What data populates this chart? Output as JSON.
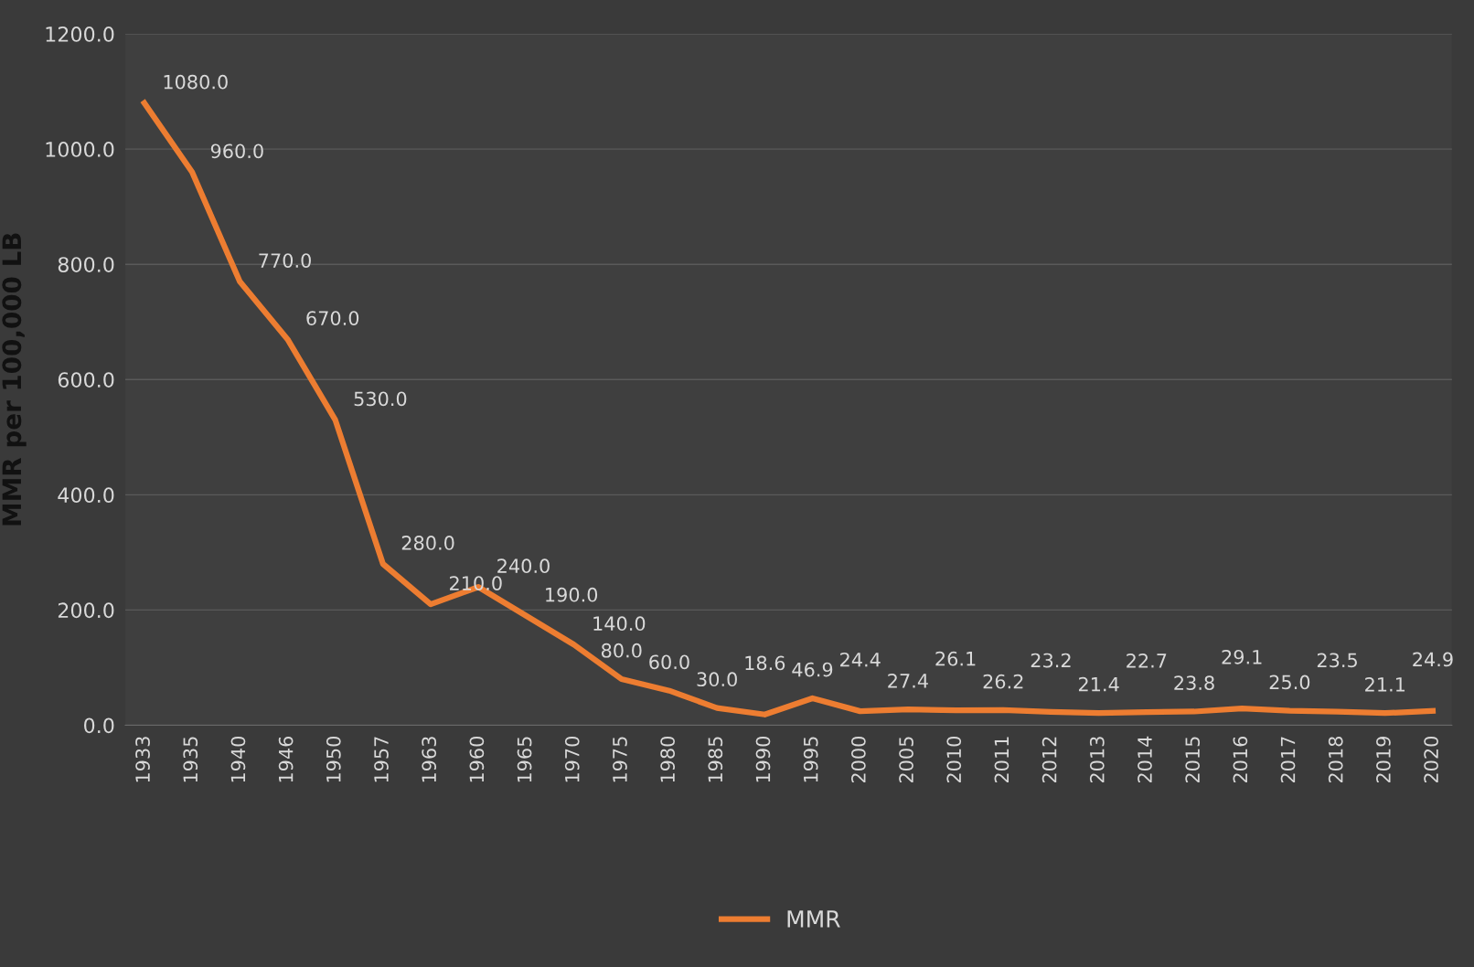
{
  "chart_data": {
    "type": "line",
    "ylabel": "MMR per 100,000 LB",
    "categories": [
      "1933",
      "1935",
      "1940",
      "1946",
      "1950",
      "1957",
      "1963",
      "1960",
      "1965",
      "1970",
      "1975",
      "1980",
      "1985",
      "1990",
      "1995",
      "2000",
      "2005",
      "2010",
      "2011",
      "2012",
      "2013",
      "2014",
      "2015",
      "2016",
      "2017",
      "2018",
      "2019",
      "2020"
    ],
    "series": [
      {
        "name": "MMR",
        "color": "#ed7d31",
        "values": [
          1080,
          960,
          770,
          670,
          530,
          280,
          210,
          240,
          190,
          140,
          80,
          60,
          30,
          18.6,
          46.9,
          24.4,
          27.4,
          26.1,
          26.2,
          23.2,
          21.4,
          22.7,
          23.8,
          29.1,
          25.0,
          23.5,
          21.1,
          24.9
        ],
        "value_labels": [
          "1080.0",
          "960.0",
          "770.0",
          "670.0",
          "530.0",
          "280.0",
          "210.0",
          "240.0",
          "190.0",
          "140.0",
          "80.0",
          "60.0",
          "30.0",
          "18.6",
          "46.9",
          "24.4",
          "27.4",
          "26.1",
          "26.2",
          "23.2",
          "21.4",
          "22.7",
          "23.8",
          "29.1",
          "25.0",
          "23.5",
          "21.1",
          "24.9"
        ]
      }
    ],
    "ylim": [
      0,
      1200
    ],
    "yticks": [
      {
        "value": 0,
        "label": "0.0"
      },
      {
        "value": 200,
        "label": "200.0"
      },
      {
        "value": 400,
        "label": "400.0"
      },
      {
        "value": 600,
        "label": "600.0"
      },
      {
        "value": 800,
        "label": "800.0"
      },
      {
        "value": 1000,
        "label": "1000.0"
      },
      {
        "value": 1200,
        "label": "1200.0"
      }
    ],
    "grid": "y",
    "legend": "bottom",
    "marker": "none",
    "line_style": "solid"
  }
}
